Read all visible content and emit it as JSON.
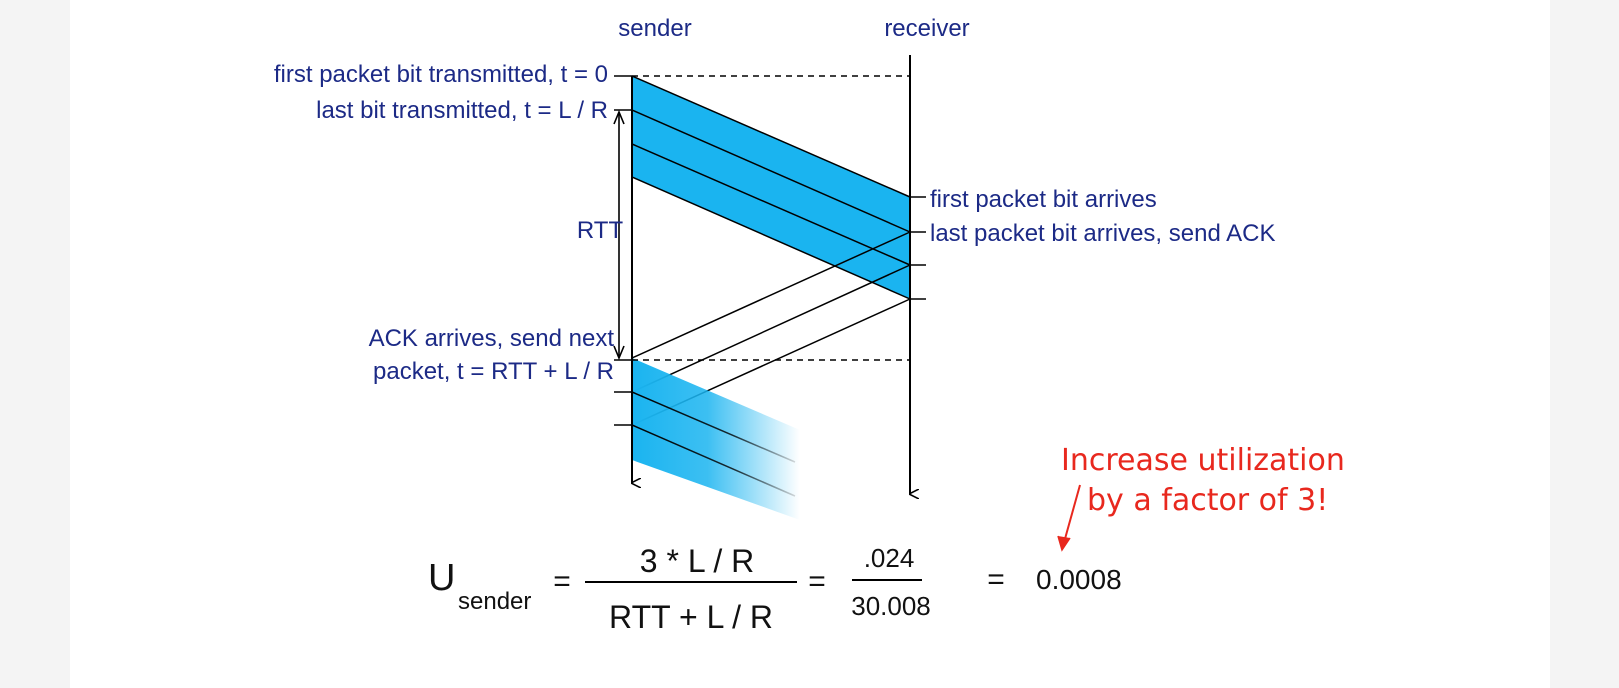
{
  "columns": {
    "sender": "sender",
    "receiver": "receiver"
  },
  "events": {
    "first_bit_tx": "first packet bit transmitted, t = 0",
    "last_bit_tx": "last bit transmitted, t = L / R",
    "rtt": "RTT",
    "first_bit_arrives": "first packet bit arrives",
    "last_bit_arrives": "last packet bit arrives, send ACK",
    "ack_arrives_1": "ACK arrives, send next",
    "ack_arrives_2": "packet, t = RTT + L / R"
  },
  "formula": {
    "u": "U",
    "sub": "sender",
    "eq1": "=",
    "num": "3 * L / R",
    "den": "RTT + L / R",
    "eq2": "=",
    "num2": ".024",
    "den2": "30.008",
    "eq3": "=",
    "result": "0.0008"
  },
  "annotation": {
    "line1": "Increase utilization",
    "line2": "by a factor of 3!"
  },
  "colors": {
    "packet_fill": "#1ab4f0",
    "label_text": "#1c2a86",
    "annotation": "#e8281e"
  }
}
